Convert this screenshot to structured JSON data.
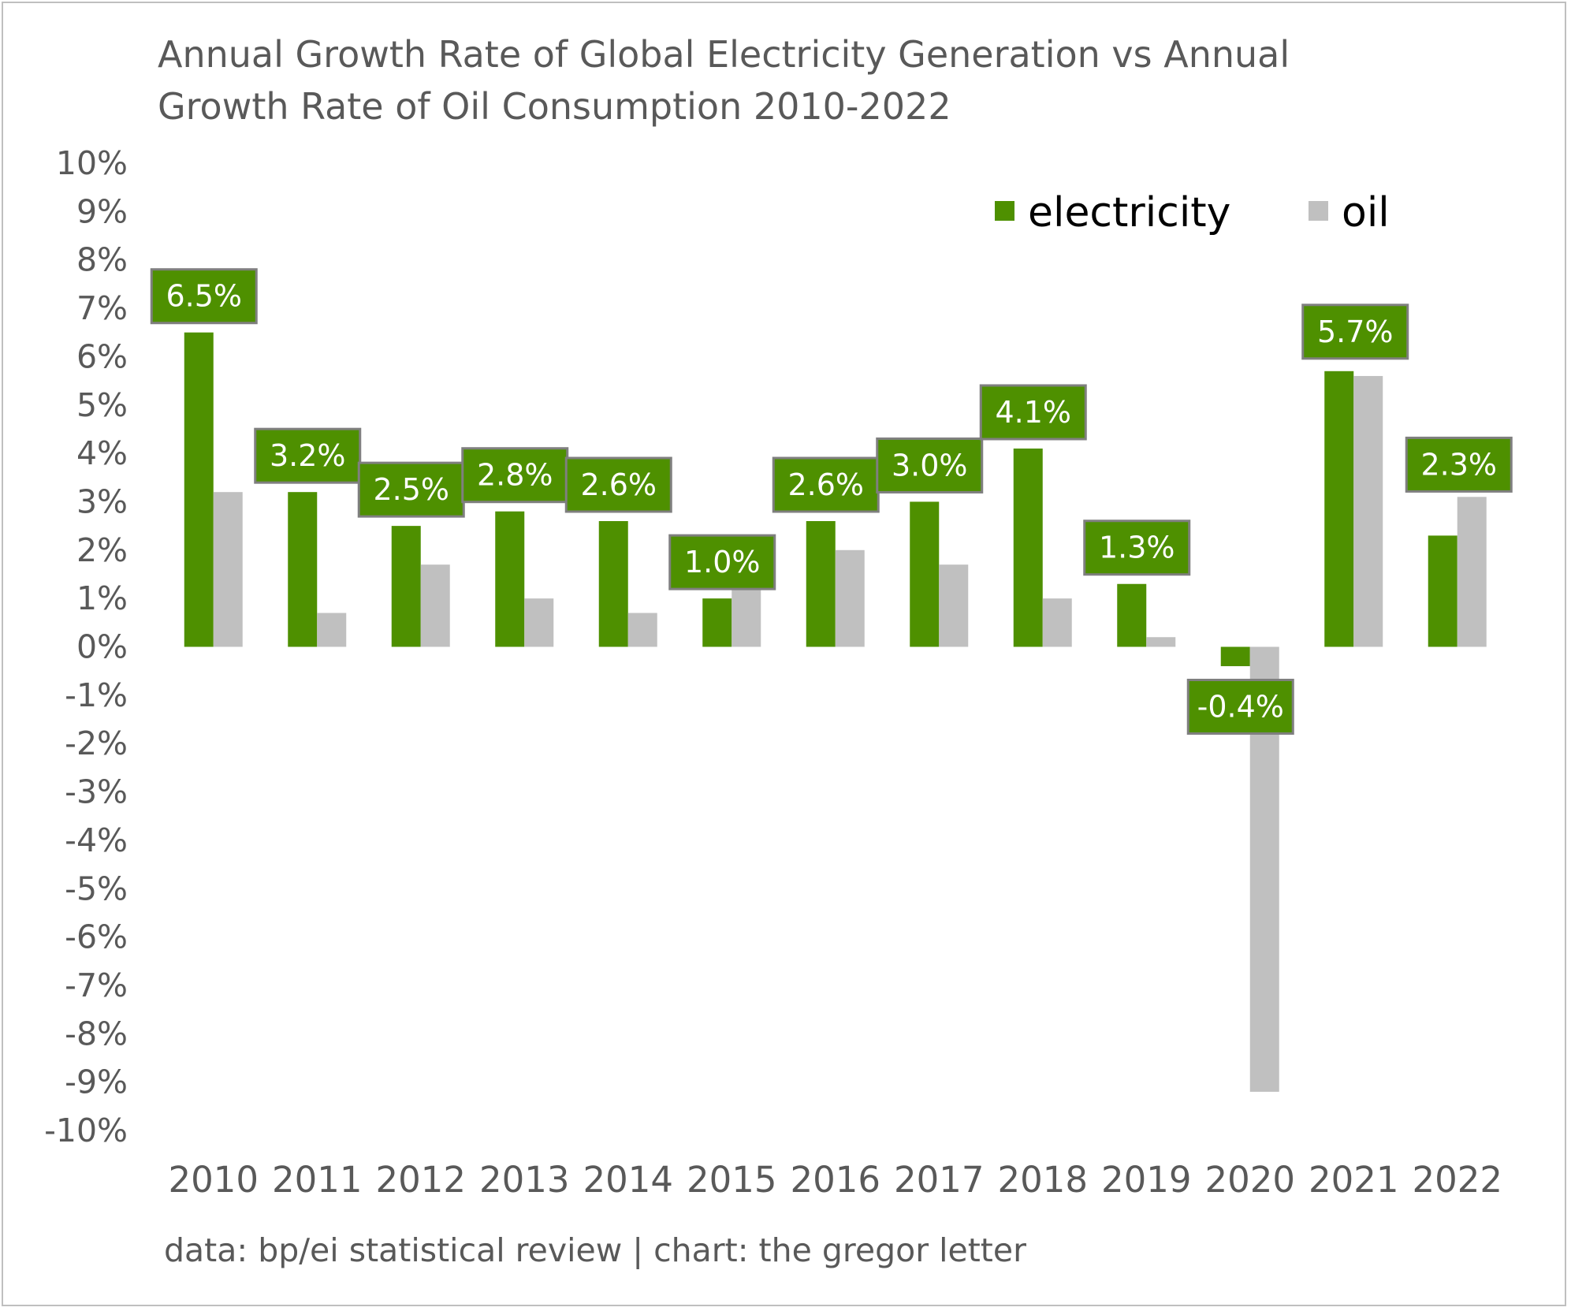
{
  "chart_data": {
    "type": "bar",
    "title": "Annual Growth Rate of Global Electricity Generation vs Annual Growth Rate of Oil Consumption 2010-2022",
    "title_lines": [
      "Annual Growth Rate of Global Electricity Generation vs Annual",
      "Growth Rate of Oil Consumption 2010-2022"
    ],
    "categories": [
      "2010",
      "2011",
      "2012",
      "2013",
      "2014",
      "2015",
      "2016",
      "2017",
      "2018",
      "2019",
      "2020",
      "2021",
      "2022"
    ],
    "series": [
      {
        "name": "electricity",
        "color": "#4e9000",
        "values": [
          6.5,
          3.2,
          2.5,
          2.8,
          2.6,
          1.0,
          2.6,
          3.0,
          4.1,
          1.3,
          -0.4,
          5.7,
          2.3
        ],
        "data_labels": [
          "6.5%",
          "3.2%",
          "2.5%",
          "2.8%",
          "2.6%",
          "1.0%",
          "2.6%",
          "3.0%",
          "4.1%",
          "1.3%",
          "-0.4%",
          "5.7%",
          "2.3%"
        ]
      },
      {
        "name": "oil",
        "color": "#c0c0c0",
        "values": [
          3.2,
          0.7,
          1.7,
          1.0,
          0.7,
          2.1,
          2.0,
          1.7,
          1.0,
          0.2,
          -9.2,
          5.6,
          3.1
        ]
      }
    ],
    "ylim": [
      -10,
      10
    ],
    "yticks": [
      10,
      9,
      8,
      7,
      6,
      5,
      4,
      3,
      2,
      1,
      0,
      -1,
      -2,
      -3,
      -4,
      -5,
      -6,
      -7,
      -8,
      -9,
      -10
    ],
    "ytick_labels": [
      "10%",
      "9%",
      "8%",
      "7%",
      "6%",
      "5%",
      "4%",
      "3%",
      "2%",
      "1%",
      "0%",
      "-1%",
      "-2%",
      "-3%",
      "-4%",
      "-5%",
      "-6%",
      "-7%",
      "-8%",
      "-9%",
      "-10%"
    ],
    "xlabel": "",
    "ylabel": "",
    "grid": false,
    "legend_position": "top-right",
    "data_label_bg": "#4e9000",
    "data_label_border": "#7f7f7f"
  },
  "source_note": "data: bp/ei statistical review | chart: the gregor letter"
}
